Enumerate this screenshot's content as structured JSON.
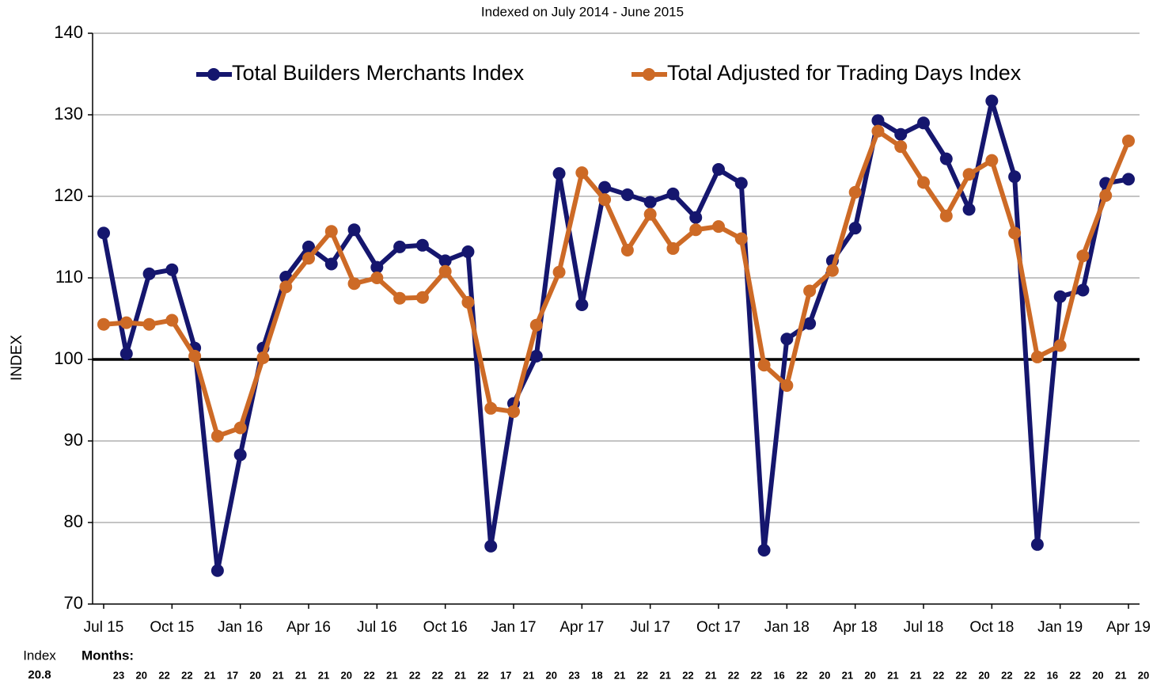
{
  "chart_data": {
    "type": "line",
    "title": "Indexed on July 2014 - June 2015",
    "y_label": "INDEX",
    "categories": [
      "Jul 15",
      null,
      null,
      "Oct 15",
      null,
      null,
      "Jan 16",
      null,
      null,
      "Apr 16",
      null,
      null,
      "Jul 16",
      null,
      null,
      "Oct 16",
      null,
      null,
      "Jan 17",
      null,
      null,
      "Apr 17",
      null,
      null,
      "Jul 17",
      null,
      null,
      "Oct 17",
      null,
      null,
      "Jan 18",
      null,
      null,
      "Apr 18",
      null,
      null,
      "Jul 18",
      null,
      null,
      "Oct 18",
      null,
      null,
      "Jan 19",
      null,
      null,
      "Apr 19"
    ],
    "series": [
      {
        "name": "Total Builders Merchants Index",
        "color": "#15166e",
        "values": [
          115.5,
          100.7,
          110.5,
          111.0,
          101.4,
          74.1,
          88.3,
          101.4,
          110.1,
          113.8,
          111.7,
          115.9,
          111.3,
          113.8,
          114.0,
          112.1,
          113.2,
          77.1,
          94.6,
          100.4,
          122.8,
          106.7,
          121.1,
          120.2,
          119.3,
          120.3,
          117.4,
          123.3,
          121.6,
          76.6,
          102.5,
          104.4,
          112.1,
          116.1,
          129.3,
          127.6,
          129.0,
          124.6,
          118.4,
          131.7,
          122.4,
          77.3,
          107.7,
          108.5,
          121.6,
          122.1
        ]
      },
      {
        "name": "Total Adjusted for Trading Days Index",
        "color": "#cd6a26",
        "values": [
          104.3,
          104.5,
          104.3,
          104.8,
          100.4,
          90.6,
          91.6,
          100.2,
          108.9,
          112.4,
          115.7,
          109.3,
          110.0,
          107.5,
          107.6,
          110.8,
          107.0,
          94.0,
          93.6,
          104.2,
          110.7,
          122.9,
          119.6,
          113.4,
          117.8,
          113.6,
          115.9,
          116.3,
          114.8,
          99.3,
          96.8,
          108.4,
          110.9,
          120.5,
          128.0,
          126.1,
          121.7,
          117.6,
          122.7,
          124.4,
          115.5,
          100.3,
          101.7,
          112.7,
          120.1,
          126.8
        ]
      }
    ],
    "ylim": [
      70,
      140
    ],
    "yticks": [
      70,
      80,
      90,
      100,
      110,
      120,
      130,
      140
    ],
    "grid": true,
    "reference_line": 100,
    "legend": "top",
    "trading_days": {
      "row_label": "Index",
      "row_value": "20.8",
      "header": "Months:",
      "values": [
        23,
        20,
        22,
        22,
        21,
        17,
        20,
        21,
        21,
        21,
        20,
        22,
        21,
        22,
        22,
        21,
        22,
        17,
        21,
        20,
        23,
        18,
        21,
        22,
        21,
        22,
        21,
        22,
        22,
        16,
        22,
        20,
        21,
        20,
        21,
        21,
        22,
        22,
        20,
        22,
        22,
        16,
        22,
        20,
        21,
        20
      ]
    }
  }
}
